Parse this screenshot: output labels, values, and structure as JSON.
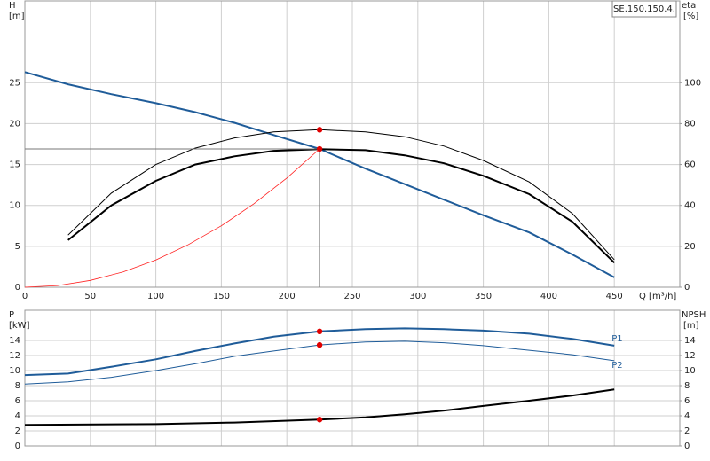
{
  "chart_data": [
    {
      "type": "line",
      "label": "SE.150.150.4.",
      "y_label": "H",
      "y_unit": "[m]",
      "y2_label": "eta",
      "y2_unit": "[%]",
      "x_label": "Q [m³/h]",
      "xlim": [
        0,
        500
      ],
      "xticks": [
        0,
        50,
        100,
        150,
        200,
        250,
        300,
        350,
        400,
        450
      ],
      "ylim": [
        0,
        35
      ],
      "yticks": [
        0,
        5,
        10,
        15,
        20,
        25
      ],
      "y2lim": [
        0,
        140
      ],
      "y2ticks": [
        0,
        20,
        40,
        60,
        80,
        100
      ],
      "grid": true,
      "series": [
        {
          "color": "#ff2020",
          "width": 0.8,
          "axis": "y",
          "x": [
            0,
            25,
            50,
            75,
            100,
            125,
            150,
            175,
            200,
            225
          ],
          "values": [
            0,
            0.21,
            0.83,
            1.88,
            3.34,
            5.22,
            7.51,
            10.22,
            13.35,
            16.9
          ]
        },
        {
          "color": "#1f5c99",
          "width": 2,
          "axis": "y",
          "x": [
            0,
            33,
            66,
            100,
            130,
            160,
            190,
            225,
            260,
            290,
            320,
            350,
            385,
            418,
            450
          ],
          "values": [
            26.3,
            24.8,
            23.6,
            22.5,
            21.4,
            20.1,
            18.6,
            16.9,
            14.5,
            12.6,
            10.7,
            8.8,
            6.7,
            4.0,
            1.2
          ]
        },
        {
          "color": "#000000",
          "width": 1,
          "axis": "y2",
          "x": [
            33,
            66,
            100,
            130,
            160,
            190,
            225,
            260,
            290,
            320,
            350,
            385,
            418,
            450
          ],
          "values": [
            25.5,
            46,
            60,
            68,
            73,
            76,
            77,
            76,
            73.6,
            69,
            62,
            51.5,
            36,
            13.5
          ]
        },
        {
          "color": "#000000",
          "width": 2,
          "axis": "y2",
          "x": [
            33,
            66,
            100,
            130,
            160,
            190,
            225,
            260,
            290,
            320,
            350,
            385,
            418,
            450
          ],
          "values": [
            23,
            40,
            52,
            60,
            64,
            66.7,
            67.5,
            67,
            64.5,
            60.6,
            54.5,
            45.5,
            32,
            12
          ]
        },
        {
          "color": "#e00000",
          "marker": true,
          "guide": true,
          "axis": "y",
          "x": [
            225
          ],
          "values": [
            16.9
          ]
        },
        {
          "color": "#e00000",
          "marker": true,
          "axis": "y2",
          "x": [
            225
          ],
          "values": [
            77
          ]
        }
      ]
    },
    {
      "type": "line",
      "y_label": "P",
      "y_unit": "[kW]",
      "y2_label": "NPSH",
      "y2_unit": "[m]",
      "xlim": [
        0,
        500
      ],
      "ylim": [
        0,
        18
      ],
      "yticks": [
        0,
        2,
        4,
        6,
        8,
        10,
        12,
        14
      ],
      "y2lim": [
        0,
        18
      ],
      "y2ticks": [
        0,
        2,
        4,
        6,
        8,
        10,
        12,
        14
      ],
      "grid": true,
      "series": [
        {
          "name": "P1",
          "color": "#1f5c99",
          "width": 2,
          "axis": "y",
          "x": [
            0,
            33,
            66,
            100,
            130,
            160,
            190,
            225,
            260,
            290,
            320,
            350,
            385,
            418,
            450
          ],
          "values": [
            9.4,
            9.6,
            10.5,
            11.5,
            12.6,
            13.6,
            14.5,
            15.2,
            15.5,
            15.6,
            15.5,
            15.3,
            14.9,
            14.2,
            13.3
          ]
        },
        {
          "name": "P2",
          "color": "#1f5c99",
          "width": 1,
          "axis": "y",
          "x": [
            0,
            33,
            66,
            100,
            130,
            160,
            190,
            225,
            260,
            290,
            320,
            350,
            385,
            418,
            450
          ],
          "values": [
            8.2,
            8.5,
            9.1,
            10.0,
            10.9,
            11.9,
            12.6,
            13.4,
            13.8,
            13.9,
            13.7,
            13.3,
            12.7,
            12.1,
            11.3
          ]
        },
        {
          "color": "#000000",
          "width": 2,
          "axis": "y2",
          "x": [
            0,
            100,
            160,
            225,
            260,
            290,
            320,
            350,
            385,
            418,
            450
          ],
          "values": [
            2.8,
            2.9,
            3.1,
            3.5,
            3.8,
            4.2,
            4.7,
            5.3,
            6.0,
            6.7,
            7.5
          ]
        },
        {
          "color": "#e00000",
          "marker": true,
          "axis": "y",
          "x": [
            225
          ],
          "values": [
            15.2
          ]
        },
        {
          "color": "#e00000",
          "marker": true,
          "axis": "y",
          "x": [
            225
          ],
          "values": [
            13.4
          ]
        },
        {
          "color": "#e00000",
          "marker": true,
          "axis": "y2",
          "x": [
            225
          ],
          "values": [
            3.5
          ]
        }
      ]
    }
  ]
}
